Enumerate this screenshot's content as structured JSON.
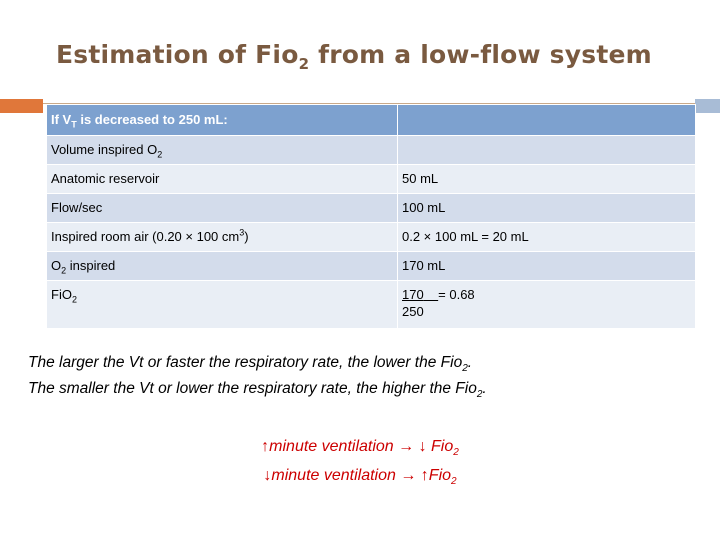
{
  "title": {
    "text": "Estimation of Fio",
    "sub": "2",
    "rest": " from a low-flow system"
  },
  "table": {
    "header": {
      "c1_pre": "If V",
      "c1_sub": "T",
      "c1_post": " is decreased to 250 mL:",
      "c2": ""
    },
    "rows": [
      {
        "c1_pre": "Volume inspired O",
        "c1_sub": "2",
        "c1_post": "",
        "c2": ""
      },
      {
        "c1_pre": "Anatomic reservoir",
        "c2": "50 mL"
      },
      {
        "c1_pre": "Flow/sec",
        "c2": "100 mL"
      },
      {
        "c1_pre": "Inspired room air (0.20 × 100 cm",
        "c1_sup": "3",
        "c1_post": ")",
        "c2": "0.2 × 100 mL = 20 mL"
      },
      {
        "c1_pre": "O",
        "c1_sub": "2",
        "c1_post": " inspired",
        "c2": "170 mL"
      },
      {
        "c1_pre": " FiO",
        "c1_sub": "2",
        "c2_num": "170",
        "c2_eq": "= 0.68",
        "c2_den": "250"
      }
    ]
  },
  "notes": {
    "line1_pre": "The larger the Vt or faster the respiratory rate, the lower the Fio",
    "line1_sub": "2",
    "line1_post": ".",
    "line2_pre": "The smaller the Vt or lower the respiratory rate, the higher the Fio",
    "line2_sub": "2",
    "line2_post": "."
  },
  "summary": {
    "line1_pre": "↑minute ventilation → ↓ Fio",
    "line1_sub": "2",
    "line2_pre": "↓minute ventilation → ↑Fio",
    "line2_sub": "2"
  },
  "colors": {
    "title": "#7a5a40",
    "accent": "#e0773a",
    "table_header": "#7da1cf",
    "summary_text": "#cc0000"
  }
}
